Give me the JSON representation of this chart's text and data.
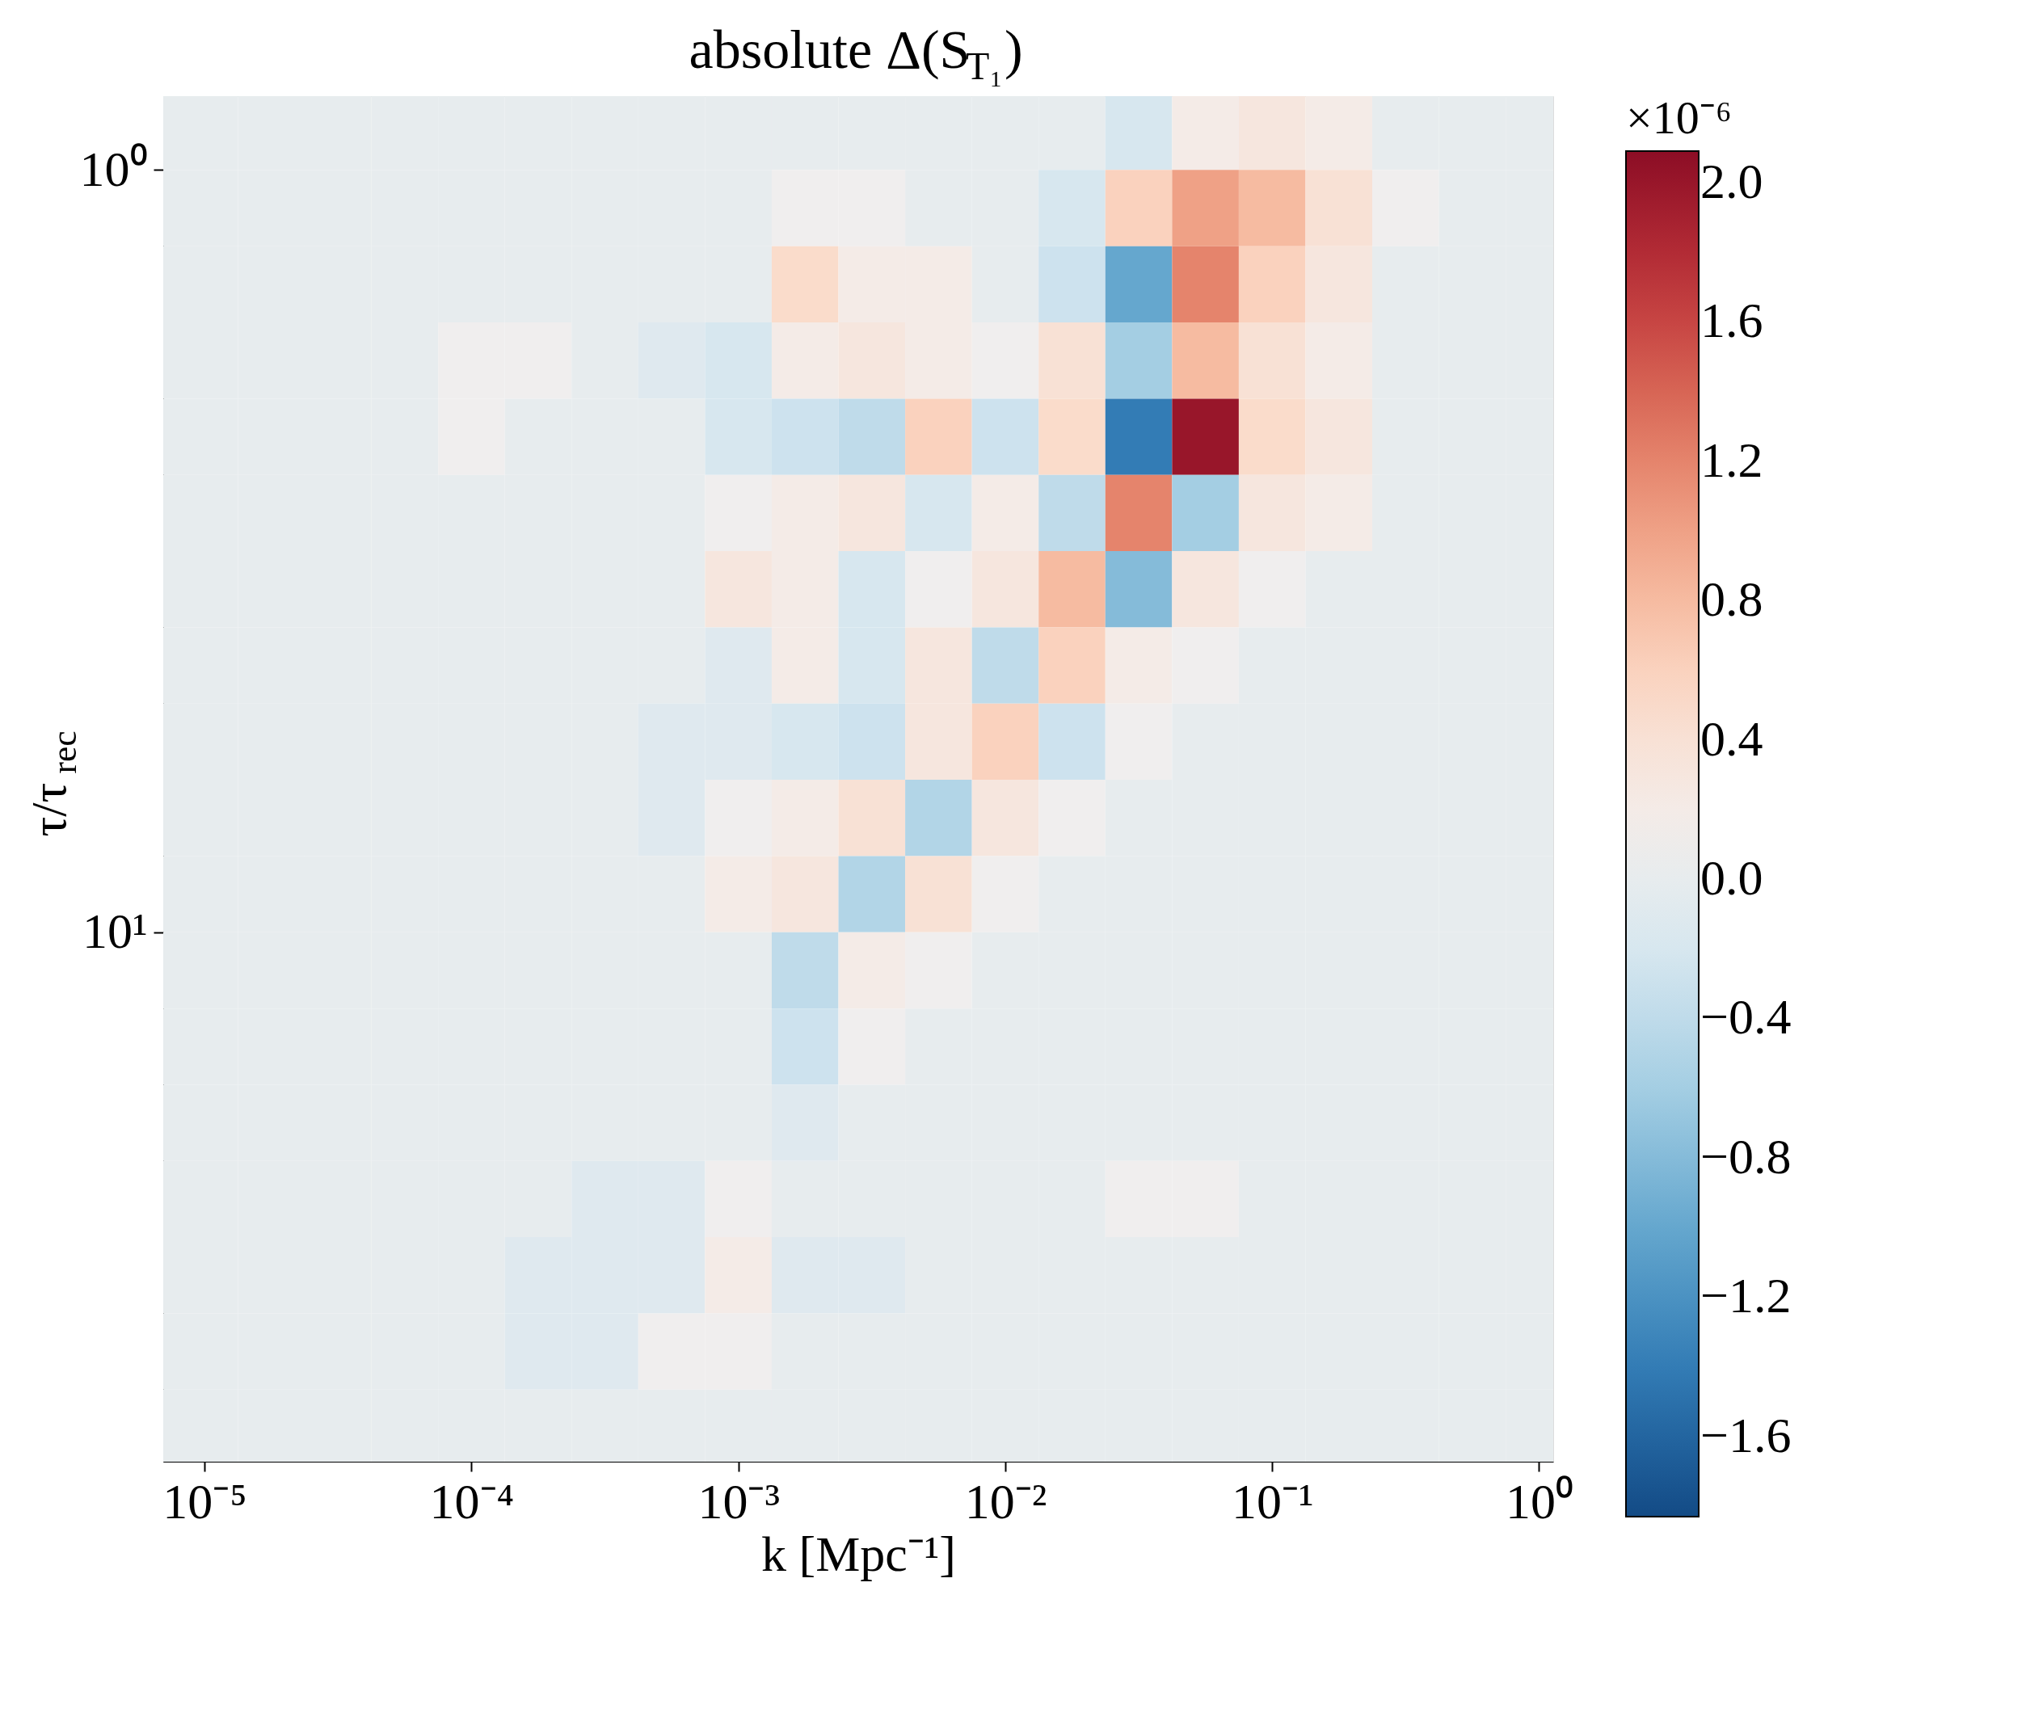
{
  "chart_data": {
    "type": "heatmap",
    "title": "absolute Δ(S$_{T₁}$)",
    "xlabel": "k [Mpc⁻¹]",
    "ylabel": "τ/τ$_{rec}$",
    "clabel": "×10⁻⁶",
    "log": "xy",
    "grid": false,
    "xlim": [
      7e-06,
      1.13
    ],
    "ylim": [
      49.5,
      0.8
    ],
    "xticks": [
      {
        "value": 1e-05,
        "label": "10⁻⁵"
      },
      {
        "value": 0.0001,
        "label": "10⁻⁴"
      },
      {
        "value": 0.001,
        "label": "10⁻³"
      },
      {
        "value": 0.01,
        "label": "10⁻²"
      },
      {
        "value": 0.1,
        "label": "10⁻¹"
      },
      {
        "value": 1,
        "label": "10⁰"
      }
    ],
    "yticks": [
      {
        "value": 1,
        "label": "10⁰"
      },
      {
        "value": 10,
        "label": "10¹"
      }
    ],
    "clim": [
      -1.83,
      2.09
    ],
    "cticks": [
      {
        "value": -1.6,
        "label": "−1.6"
      },
      {
        "value": -1.2,
        "label": "−1.2"
      },
      {
        "value": -0.8,
        "label": "−0.8"
      },
      {
        "value": -0.4,
        "label": "−0.4"
      },
      {
        "value": 0,
        "label": "0.0"
      },
      {
        "value": 0.4,
        "label": "0.4"
      },
      {
        "value": 0.8,
        "label": "0.8"
      },
      {
        "value": 1.2,
        "label": "1.2"
      },
      {
        "value": 1.6,
        "label": "1.6"
      },
      {
        "value": 2.0,
        "label": "2.0"
      }
    ],
    "x": [
      1e-05,
      1.778e-05,
      3.162e-05,
      5.623e-05,
      0.0001,
      0.0001778,
      0.0003162,
      0.0005623,
      0.001,
      0.001778,
      0.003162,
      0.005623,
      0.01,
      0.01778,
      0.03162,
      0.05623,
      0.1,
      0.1778,
      0.3162,
      0.5623,
      1
    ],
    "y": [
      0.891,
      1.122,
      1.413,
      1.778,
      2.239,
      2.818,
      3.548,
      4.467,
      5.623,
      7.079,
      8.913,
      11.22,
      14.13,
      17.78,
      22.39,
      28.18,
      35.48,
      44.67
    ],
    "cells": [
      [
        0,
        0,
        0,
        0,
        0,
        0,
        0,
        0,
        0,
        0,
        0,
        0,
        0,
        0,
        -0.2,
        0.2,
        0.3,
        0.2,
        0,
        0,
        0
      ],
      [
        0,
        0,
        0,
        0,
        0,
        0,
        0,
        0,
        0,
        0.1,
        0.1,
        0,
        0,
        -0.2,
        0.6,
        1.0,
        0.8,
        0.4,
        0.1,
        0,
        0
      ],
      [
        0,
        0,
        0,
        0,
        0,
        0,
        0,
        0,
        0,
        0.5,
        0.2,
        0.2,
        0,
        -0.3,
        -1.0,
        1.2,
        0.6,
        0.3,
        0,
        0,
        0
      ],
      [
        0,
        0,
        0,
        0,
        0.1,
        0.1,
        0,
        -0.1,
        -0.2,
        0.2,
        0.3,
        0.2,
        0.1,
        0.4,
        -0.6,
        0.8,
        0.4,
        0.2,
        0,
        0,
        0
      ],
      [
        0,
        0,
        0,
        0,
        0.1,
        0,
        0,
        0,
        -0.2,
        -0.3,
        -0.4,
        0.6,
        -0.3,
        0.5,
        -1.4,
        2.0,
        0.5,
        0.3,
        0,
        0,
        0
      ],
      [
        0,
        0,
        0,
        0,
        0,
        0,
        0,
        0,
        0.1,
        0.2,
        0.3,
        -0.2,
        0.2,
        -0.4,
        1.2,
        -0.6,
        0.3,
        0.2,
        0,
        0,
        0
      ],
      [
        0,
        0,
        0,
        0,
        0,
        0,
        0,
        0,
        0.3,
        0.2,
        -0.2,
        0.1,
        0.3,
        0.8,
        -0.8,
        0.3,
        0.1,
        0,
        0,
        0,
        0
      ],
      [
        0,
        0,
        0,
        0,
        0,
        0,
        0,
        0,
        -0.1,
        0.2,
        -0.2,
        0.3,
        -0.4,
        0.6,
        0.2,
        0.1,
        0,
        0,
        0,
        0,
        0
      ],
      [
        0,
        0,
        0,
        0,
        0,
        0,
        0,
        -0.1,
        -0.1,
        -0.2,
        -0.3,
        0.3,
        0.6,
        -0.3,
        0.1,
        0,
        0,
        0,
        0,
        0,
        0
      ],
      [
        0,
        0,
        0,
        0,
        0,
        0,
        0,
        -0.1,
        0.1,
        0.2,
        0.4,
        -0.5,
        0.3,
        0.1,
        0,
        0,
        0,
        0,
        0,
        0,
        0
      ],
      [
        0,
        0,
        0,
        0,
        0,
        0,
        0,
        0,
        0.2,
        0.3,
        -0.5,
        0.4,
        0.1,
        0,
        0,
        0,
        0,
        0,
        0,
        0,
        0
      ],
      [
        0,
        0,
        0,
        0,
        0,
        0,
        0,
        0,
        0,
        -0.4,
        0.2,
        0.1,
        0,
        0,
        0,
        0,
        0,
        0,
        0,
        0,
        0
      ],
      [
        0,
        0,
        0,
        0,
        0,
        0,
        0,
        0,
        0,
        -0.3,
        0.1,
        0,
        0,
        0,
        0,
        0,
        0,
        0,
        0,
        0,
        0
      ],
      [
        0,
        0,
        0,
        0,
        0,
        0,
        0,
        0,
        0,
        -0.1,
        0,
        0,
        0,
        0,
        0,
        0,
        0,
        0,
        0,
        0,
        0
      ],
      [
        0,
        0,
        0,
        0,
        0,
        0,
        -0.1,
        -0.1,
        0.1,
        0,
        0,
        0,
        0,
        0,
        0.1,
        0.1,
        0,
        0,
        0,
        0,
        0
      ],
      [
        0,
        0,
        0,
        0,
        0,
        -0.1,
        -0.1,
        -0.1,
        0.2,
        -0.1,
        -0.1,
        0,
        0,
        0,
        0,
        0,
        0,
        0,
        0,
        0,
        0
      ],
      [
        0,
        0,
        0,
        0,
        0,
        -0.1,
        -0.1,
        0.1,
        0.1,
        0,
        0,
        0,
        0,
        0,
        0,
        0,
        0,
        0,
        0,
        0,
        0
      ],
      [
        0,
        0,
        0,
        0,
        0,
        0,
        0,
        0,
        0,
        0,
        0,
        0,
        0,
        0,
        0,
        0,
        0,
        0,
        0,
        0,
        0
      ]
    ]
  }
}
